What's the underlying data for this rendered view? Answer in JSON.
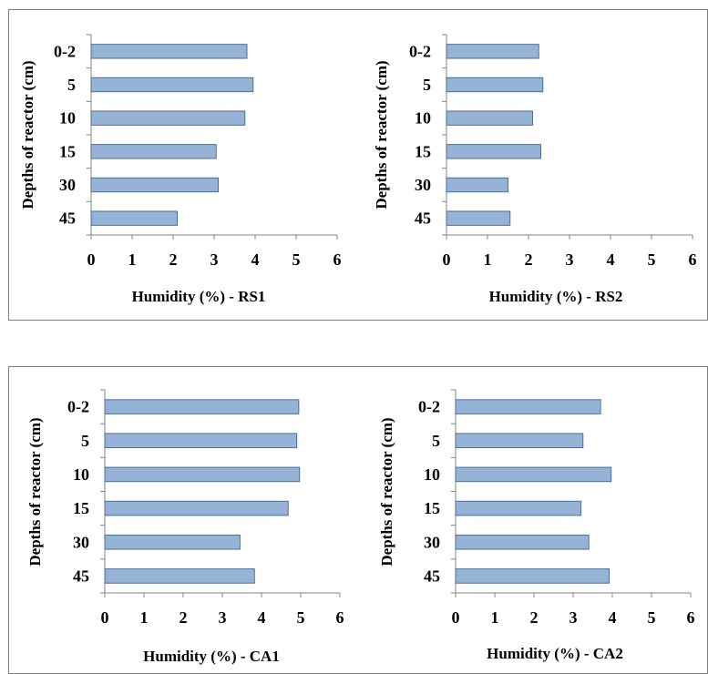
{
  "chart_data": [
    {
      "type": "bar",
      "orientation": "horizontal",
      "categories": [
        "0-2",
        "5",
        "10",
        "15",
        "30",
        "45"
      ],
      "values": [
        3.8,
        3.95,
        3.75,
        3.05,
        3.1,
        2.1
      ],
      "xlabel": "Humidity (%) - RS1",
      "ylabel": "Depths of reactor (cm)",
      "xlim": [
        0,
        6
      ],
      "xticks": [
        "0",
        "1",
        "2",
        "3",
        "4",
        "5",
        "6"
      ],
      "bar_color": "#95b3d7",
      "grid": false
    },
    {
      "type": "bar",
      "orientation": "horizontal",
      "categories": [
        "0-2",
        "5",
        "10",
        "15",
        "30",
        "45"
      ],
      "values": [
        2.25,
        2.35,
        2.1,
        2.3,
        1.5,
        1.55
      ],
      "xlabel": "Humidity (%) - RS2",
      "ylabel": "Depths of reactor (cm)",
      "xlim": [
        0,
        6
      ],
      "xticks": [
        "0",
        "1",
        "2",
        "3",
        "4",
        "5",
        "6"
      ],
      "bar_color": "#95b3d7",
      "grid": false
    },
    {
      "type": "bar",
      "orientation": "horizontal",
      "categories": [
        "0-2",
        "5",
        "10",
        "15",
        "30",
        "45"
      ],
      "values": [
        4.95,
        4.9,
        4.97,
        4.68,
        3.45,
        3.82
      ],
      "xlabel": "Humidity (%) - CA1",
      "ylabel": "Depths of reactor (cm)",
      "xlim": [
        0,
        6
      ],
      "xticks": [
        "0",
        "1",
        "2",
        "3",
        "4",
        "5",
        "6"
      ],
      "bar_color": "#95b3d7",
      "grid": false
    },
    {
      "type": "bar",
      "orientation": "horizontal",
      "categories": [
        "0-2",
        "5",
        "10",
        "15",
        "30",
        "45"
      ],
      "values": [
        3.7,
        3.25,
        3.97,
        3.2,
        3.4,
        3.92
      ],
      "xlabel": "Humidity (%) - CA2",
      "ylabel": "Depths of reactor (cm)",
      "xlim": [
        0,
        6
      ],
      "xticks": [
        "0",
        "1",
        "2",
        "3",
        "4",
        "5",
        "6"
      ],
      "bar_color": "#95b3d7",
      "grid": false
    }
  ]
}
